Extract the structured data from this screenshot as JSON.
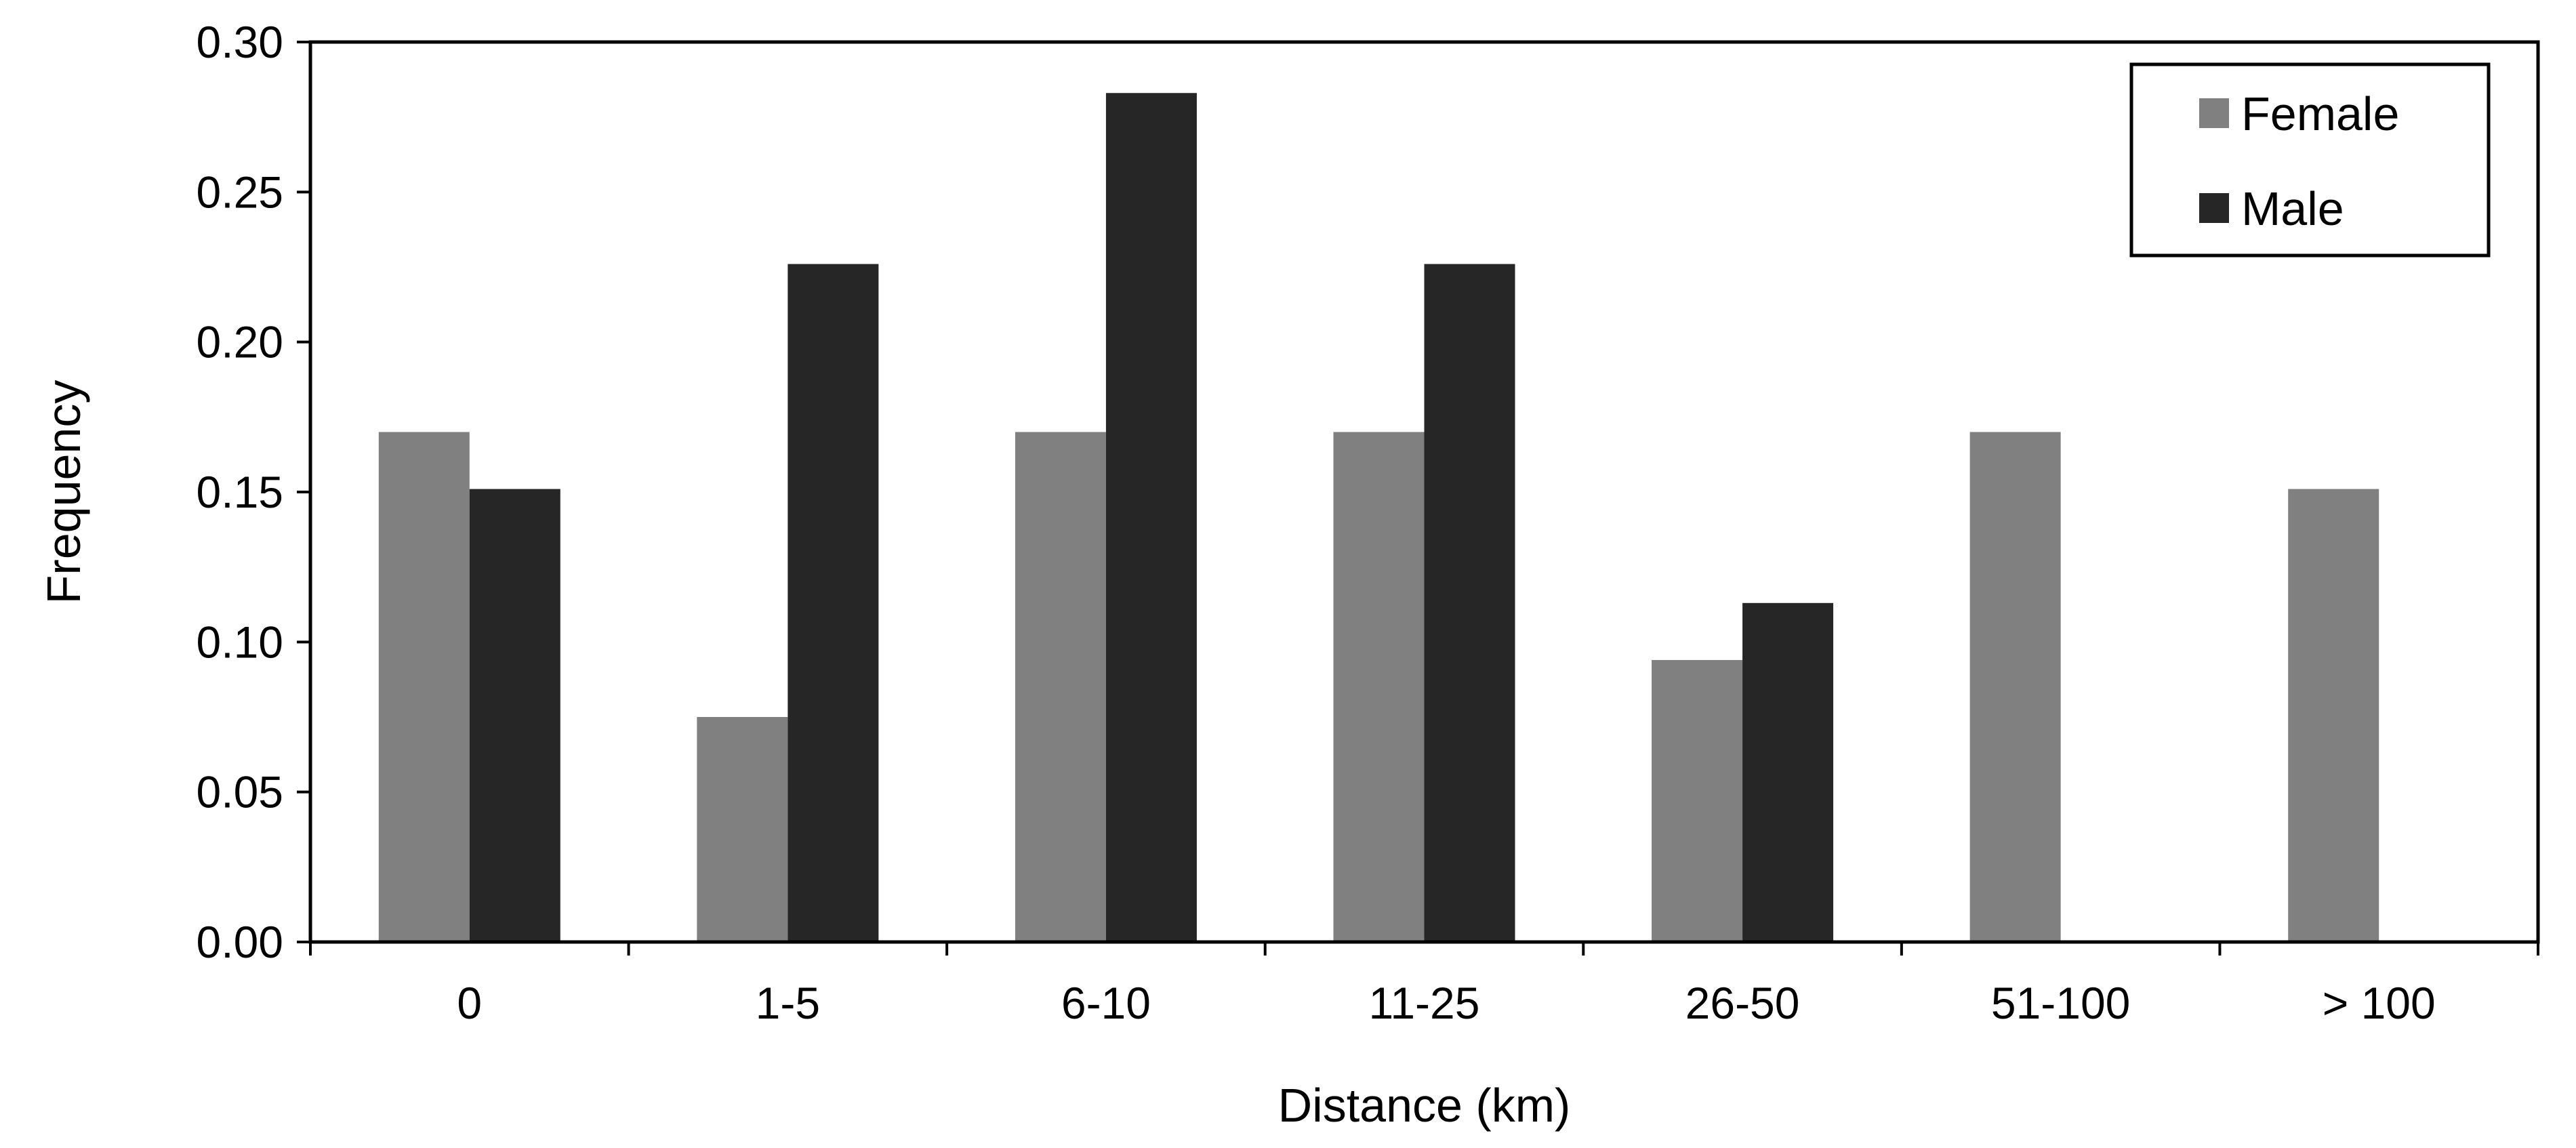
{
  "chart_data": {
    "type": "bar",
    "title": "",
    "xlabel": "Distance (km)",
    "ylabel": "Frequency",
    "categories": [
      "0",
      "1-5",
      "6-10",
      "11-25",
      "26-50",
      "51-100",
      "> 100"
    ],
    "series": [
      {
        "name": "Female",
        "color": "#808080",
        "values": [
          0.17,
          0.075,
          0.17,
          0.17,
          0.094,
          0.17,
          0.151
        ]
      },
      {
        "name": "Male",
        "color": "#262626",
        "values": [
          0.151,
          0.226,
          0.283,
          0.226,
          0.113,
          0.0,
          0.0
        ]
      }
    ],
    "ylim": [
      0,
      0.3
    ],
    "yticks": [
      "0.00",
      "0.05",
      "0.10",
      "0.15",
      "0.20",
      "0.25",
      "0.30"
    ],
    "grid": false,
    "legend_position": "top-right"
  }
}
